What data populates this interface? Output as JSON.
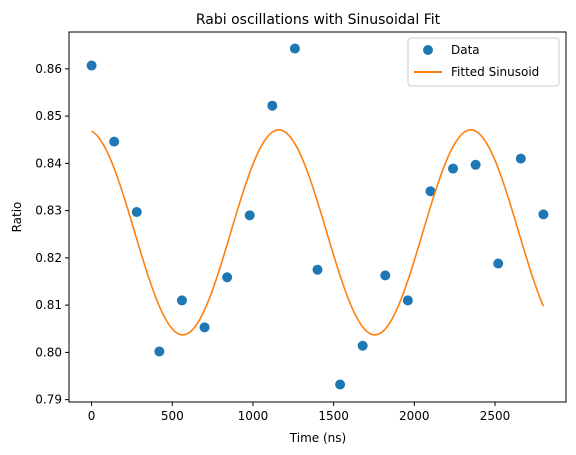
{
  "chart_data": {
    "type": "scatter",
    "title": "Rabi oscillations with Sinusoidal Fit",
    "xlabel": "Time (ns)",
    "ylabel": "Ratio",
    "xlim": [
      -140,
      2940
    ],
    "ylim": [
      0.7895,
      0.8678
    ],
    "xticks": [
      0,
      500,
      1000,
      1500,
      2000,
      2500
    ],
    "yticks": [
      0.79,
      0.8,
      0.81,
      0.82,
      0.83,
      0.84,
      0.85,
      0.86
    ],
    "ytick_labels": [
      "0.79",
      "0.80",
      "0.81",
      "0.82",
      "0.83",
      "0.84",
      "0.85",
      "0.86"
    ],
    "legend_position": "top-right",
    "grid": false,
    "series": [
      {
        "name": "Data",
        "kind": "scatter",
        "color": "#1f77b4",
        "x": [
          0,
          140,
          280,
          420,
          560,
          700,
          840,
          980,
          1120,
          1260,
          1400,
          1540,
          1680,
          1820,
          1960,
          2100,
          2240,
          2380,
          2520,
          2660,
          2800
        ],
        "y": [
          0.8607,
          0.8446,
          0.8297,
          0.8002,
          0.811,
          0.8053,
          0.8159,
          0.829,
          0.8522,
          0.8643,
          0.8175,
          0.7932,
          0.8014,
          0.8163,
          0.811,
          0.8341,
          0.8389,
          0.8397,
          0.8188,
          0.841,
          0.8292
        ]
      },
      {
        "name": "Fitted Sinusoid",
        "kind": "line",
        "color": "#ff7f0e",
        "fit": {
          "offset": 0.8254,
          "amplitude": 0.0217,
          "period": 1190,
          "peak_time": 1160
        },
        "x_range": [
          0,
          2800
        ]
      }
    ]
  }
}
